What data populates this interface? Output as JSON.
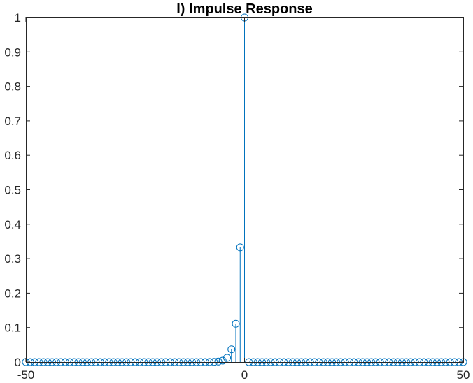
{
  "chart_data": {
    "type": "stem",
    "title": "I) Impulse Response",
    "xlabel": "",
    "ylabel": "",
    "xlim": [
      -50,
      50
    ],
    "ylim": [
      0,
      1
    ],
    "x_ticks": [
      -50,
      0,
      50
    ],
    "x_tick_labels": [
      "-50",
      "0",
      "50"
    ],
    "y_ticks": [
      0,
      0.1,
      0.2,
      0.3,
      0.4,
      0.5,
      0.6,
      0.7,
      0.8,
      0.9,
      1
    ],
    "y_tick_labels": [
      "0",
      "0.1",
      "0.2",
      "0.3",
      "0.4",
      "0.5",
      "0.6",
      "0.7",
      "0.8",
      "0.9",
      "1"
    ],
    "grid": false,
    "color": "#0072BD",
    "points": [
      {
        "x": -50,
        "y": 0
      },
      {
        "x": -49,
        "y": 0
      },
      {
        "x": -48,
        "y": 0
      },
      {
        "x": -47,
        "y": 0
      },
      {
        "x": -46,
        "y": 0
      },
      {
        "x": -45,
        "y": 0
      },
      {
        "x": -44,
        "y": 0
      },
      {
        "x": -43,
        "y": 0
      },
      {
        "x": -42,
        "y": 0
      },
      {
        "x": -41,
        "y": 0
      },
      {
        "x": -40,
        "y": 0
      },
      {
        "x": -39,
        "y": 0
      },
      {
        "x": -38,
        "y": 0
      },
      {
        "x": -37,
        "y": 0
      },
      {
        "x": -36,
        "y": 0
      },
      {
        "x": -35,
        "y": 0
      },
      {
        "x": -34,
        "y": 0
      },
      {
        "x": -33,
        "y": 0
      },
      {
        "x": -32,
        "y": 0
      },
      {
        "x": -31,
        "y": 0
      },
      {
        "x": -30,
        "y": 0
      },
      {
        "x": -29,
        "y": 0
      },
      {
        "x": -28,
        "y": 0
      },
      {
        "x": -27,
        "y": 0
      },
      {
        "x": -26,
        "y": 0
      },
      {
        "x": -25,
        "y": 0
      },
      {
        "x": -24,
        "y": 0
      },
      {
        "x": -23,
        "y": 0
      },
      {
        "x": -22,
        "y": 0
      },
      {
        "x": -21,
        "y": 0
      },
      {
        "x": -20,
        "y": 0
      },
      {
        "x": -19,
        "y": 0
      },
      {
        "x": -18,
        "y": 0
      },
      {
        "x": -17,
        "y": 0
      },
      {
        "x": -16,
        "y": 0
      },
      {
        "x": -15,
        "y": 0
      },
      {
        "x": -14,
        "y": 0
      },
      {
        "x": -13,
        "y": 0
      },
      {
        "x": -12,
        "y": 0
      },
      {
        "x": -11,
        "y": 0
      },
      {
        "x": -10,
        "y": 0
      },
      {
        "x": -9,
        "y": 0
      },
      {
        "x": -8,
        "y": 0.0002
      },
      {
        "x": -7,
        "y": 0.0005
      },
      {
        "x": -6,
        "y": 0.0014
      },
      {
        "x": -5,
        "y": 0.0041
      },
      {
        "x": -4,
        "y": 0.0123
      },
      {
        "x": -3,
        "y": 0.037
      },
      {
        "x": -2,
        "y": 0.111
      },
      {
        "x": -1,
        "y": 0.333
      },
      {
        "x": 0,
        "y": 1
      },
      {
        "x": 1,
        "y": 0
      },
      {
        "x": 2,
        "y": 0
      },
      {
        "x": 3,
        "y": 0
      },
      {
        "x": 4,
        "y": 0
      },
      {
        "x": 5,
        "y": 0
      },
      {
        "x": 6,
        "y": 0
      },
      {
        "x": 7,
        "y": 0
      },
      {
        "x": 8,
        "y": 0
      },
      {
        "x": 9,
        "y": 0
      },
      {
        "x": 10,
        "y": 0
      },
      {
        "x": 11,
        "y": 0
      },
      {
        "x": 12,
        "y": 0
      },
      {
        "x": 13,
        "y": 0
      },
      {
        "x": 14,
        "y": 0
      },
      {
        "x": 15,
        "y": 0
      },
      {
        "x": 16,
        "y": 0
      },
      {
        "x": 17,
        "y": 0
      },
      {
        "x": 18,
        "y": 0
      },
      {
        "x": 19,
        "y": 0
      },
      {
        "x": 20,
        "y": 0
      },
      {
        "x": 21,
        "y": 0
      },
      {
        "x": 22,
        "y": 0
      },
      {
        "x": 23,
        "y": 0
      },
      {
        "x": 24,
        "y": 0
      },
      {
        "x": 25,
        "y": 0
      },
      {
        "x": 26,
        "y": 0
      },
      {
        "x": 27,
        "y": 0
      },
      {
        "x": 28,
        "y": 0
      },
      {
        "x": 29,
        "y": 0
      },
      {
        "x": 30,
        "y": 0
      },
      {
        "x": 31,
        "y": 0
      },
      {
        "x": 32,
        "y": 0
      },
      {
        "x": 33,
        "y": 0
      },
      {
        "x": 34,
        "y": 0
      },
      {
        "x": 35,
        "y": 0
      },
      {
        "x": 36,
        "y": 0
      },
      {
        "x": 37,
        "y": 0
      },
      {
        "x": 38,
        "y": 0
      },
      {
        "x": 39,
        "y": 0
      },
      {
        "x": 40,
        "y": 0
      },
      {
        "x": 41,
        "y": 0
      },
      {
        "x": 42,
        "y": 0
      },
      {
        "x": 43,
        "y": 0
      },
      {
        "x": 44,
        "y": 0
      },
      {
        "x": 45,
        "y": 0
      },
      {
        "x": 46,
        "y": 0
      },
      {
        "x": 47,
        "y": 0
      },
      {
        "x": 48,
        "y": 0
      },
      {
        "x": 49,
        "y": 0
      },
      {
        "x": 50,
        "y": 0
      }
    ]
  }
}
